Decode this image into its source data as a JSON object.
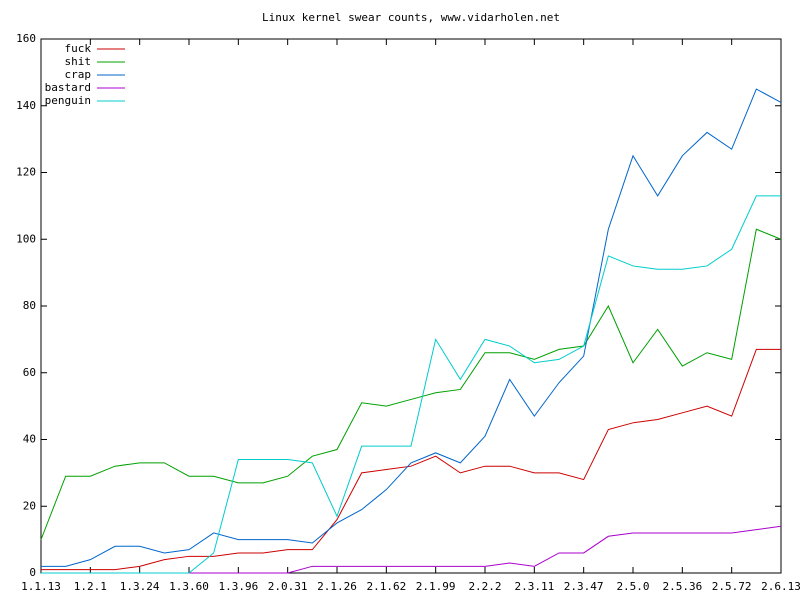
{
  "chart_data": {
    "type": "line",
    "title": "Linux kernel swear counts, www.vidarholen.net",
    "x": [
      0,
      0.5,
      1,
      1.5,
      2,
      2.5,
      3,
      3.5,
      4,
      4.5,
      5,
      5.5,
      6,
      6.5,
      7,
      7.5,
      8,
      8.5,
      9,
      9.5,
      10,
      10.5,
      11,
      11.5,
      12,
      12.5,
      13,
      13.5,
      14,
      14.5,
      15
    ],
    "series": [
      {
        "name": "fuck",
        "color": "#cc0000",
        "values": [
          1,
          1,
          1,
          1,
          2,
          4,
          5,
          5,
          6,
          6,
          7,
          7,
          16,
          30,
          31,
          32,
          35,
          30,
          32,
          32,
          30,
          30,
          28,
          43,
          45,
          46,
          48,
          50,
          47,
          67,
          67
        ]
      },
      {
        "name": "shit",
        "color": "#00a000",
        "values": [
          10,
          29,
          29,
          32,
          33,
          33,
          29,
          29,
          27,
          27,
          29,
          35,
          37,
          51,
          50,
          52,
          54,
          55,
          66,
          66,
          64,
          67,
          68,
          80,
          63,
          73,
          62,
          66,
          64,
          103,
          100
        ]
      },
      {
        "name": "crap",
        "color": "#0066cc",
        "values": [
          2,
          2,
          4,
          8,
          8,
          6,
          7,
          12,
          10,
          10,
          10,
          9,
          15,
          19,
          25,
          33,
          36,
          33,
          41,
          58,
          47,
          57,
          65,
          103,
          125,
          113,
          125,
          132,
          127,
          145,
          141
        ]
      },
      {
        "name": "bastard",
        "color": "#aa00cc",
        "values": [
          0,
          0,
          0,
          0,
          0,
          0,
          0,
          0,
          0,
          0,
          0,
          2,
          2,
          2,
          2,
          2,
          2,
          2,
          2,
          3,
          2,
          6,
          6,
          11,
          12,
          12,
          12,
          12,
          12,
          13,
          14
        ]
      },
      {
        "name": "penguin",
        "color": "#00cccc",
        "values": [
          0,
          0,
          0,
          0,
          0,
          0,
          0,
          6,
          34,
          34,
          34,
          33,
          17,
          38,
          38,
          38,
          70,
          58,
          70,
          68,
          63,
          64,
          68,
          95,
          92,
          91,
          91,
          92,
          97,
          113,
          113
        ]
      }
    ],
    "xlim": [
      0,
      15
    ],
    "xticks": [
      {
        "value": 0,
        "label": "1.1.13"
      },
      {
        "value": 1,
        "label": "1.2.1"
      },
      {
        "value": 2,
        "label": "1.3.24"
      },
      {
        "value": 3,
        "label": "1.3.60"
      },
      {
        "value": 4,
        "label": "1.3.96"
      },
      {
        "value": 5,
        "label": "2.0.31"
      },
      {
        "value": 6,
        "label": "2.1.26"
      },
      {
        "value": 7,
        "label": "2.1.62"
      },
      {
        "value": 8,
        "label": "2.1.99"
      },
      {
        "value": 9,
        "label": "2.2.2"
      },
      {
        "value": 10,
        "label": "2.3.11"
      },
      {
        "value": 11,
        "label": "2.3.47"
      },
      {
        "value": 12,
        "label": "2.5.0"
      },
      {
        "value": 13,
        "label": "2.5.36"
      },
      {
        "value": 14,
        "label": "2.5.72"
      },
      {
        "value": 15,
        "label": "2.6.13"
      }
    ],
    "ylim": [
      0,
      160
    ],
    "yticks": [
      0,
      20,
      40,
      60,
      80,
      100,
      120,
      140,
      160
    ],
    "legend": "upper left",
    "grid": false
  }
}
